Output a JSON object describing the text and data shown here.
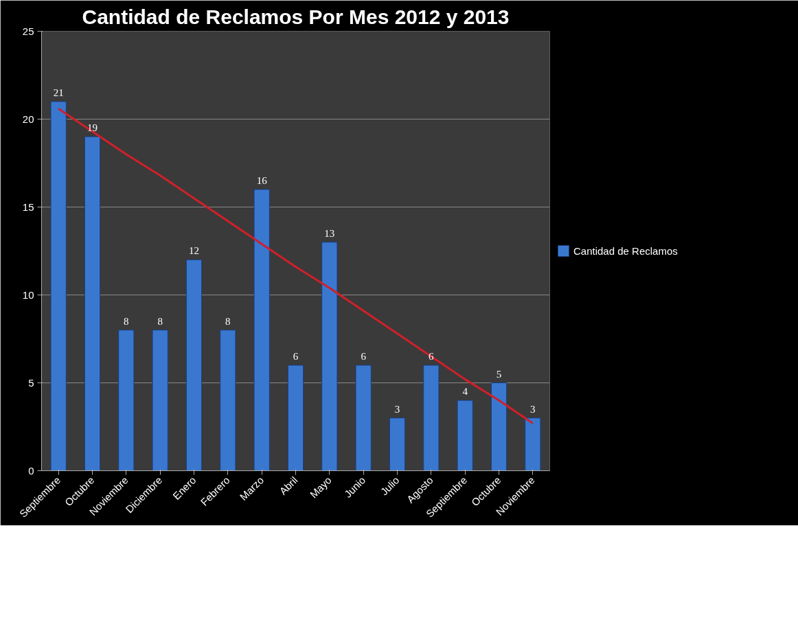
{
  "chart_data": {
    "type": "bar",
    "title": "Cantidad de Reclamos Por Mes 2012 y 2013",
    "categories": [
      "Septiembre",
      "Octubre",
      "Noviembre",
      "Diciembre",
      "Enero",
      "Febrero",
      "Marzo",
      "Abril",
      "Mayo",
      "Junio",
      "Julio",
      "Agosto",
      "Septiembre",
      "Octubre",
      "Noviembre"
    ],
    "series": [
      {
        "name": "Cantidad de Reclamos",
        "color": "#3a78d0",
        "values": [
          21,
          19,
          8,
          8,
          12,
          8,
          16,
          6,
          13,
          6,
          3,
          6,
          4,
          5,
          3
        ],
        "value_labels": [
          "21",
          "19",
          "8",
          "8",
          "12",
          "8",
          "16",
          "6",
          "13",
          "6",
          "3",
          "6",
          "4",
          "5",
          "3"
        ]
      },
      {
        "type": "line",
        "color": "#d0202a",
        "values": [
          20.6,
          19.3,
          18.0,
          16.8,
          15.5,
          14.2,
          12.9,
          11.6,
          10.4,
          9.1,
          7.8,
          6.5,
          5.2,
          4.0,
          2.7
        ]
      }
    ],
    "ylim": [
      0,
      25
    ],
    "yticks": [
      0,
      5,
      10,
      15,
      20,
      25
    ],
    "grid": "y",
    "legend": "right"
  }
}
